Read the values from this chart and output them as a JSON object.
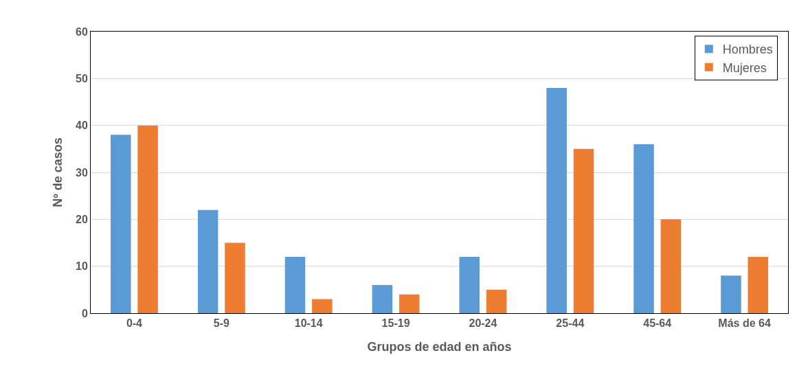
{
  "chart_data": {
    "type": "bar",
    "xlabel": "Grupos de edad en años",
    "ylabel": "Nº de casos",
    "categories": [
      "0-4",
      "5-9",
      "10-14",
      "15-19",
      "20-24",
      "25-44",
      "45-64",
      "Más de 64"
    ],
    "series": [
      {
        "name": "Hombres",
        "color": "#5b9bd5",
        "values": [
          38,
          22,
          12,
          6,
          12,
          48,
          36,
          8
        ]
      },
      {
        "name": "Mujeres",
        "color": "#ed7d31",
        "values": [
          40,
          15,
          3,
          4,
          5,
          35,
          20,
          12
        ]
      }
    ],
    "ylim": [
      0,
      60
    ],
    "yticks": [
      0,
      10,
      20,
      30,
      40,
      50,
      60
    ],
    "grid": "y",
    "legend": "top right"
  }
}
